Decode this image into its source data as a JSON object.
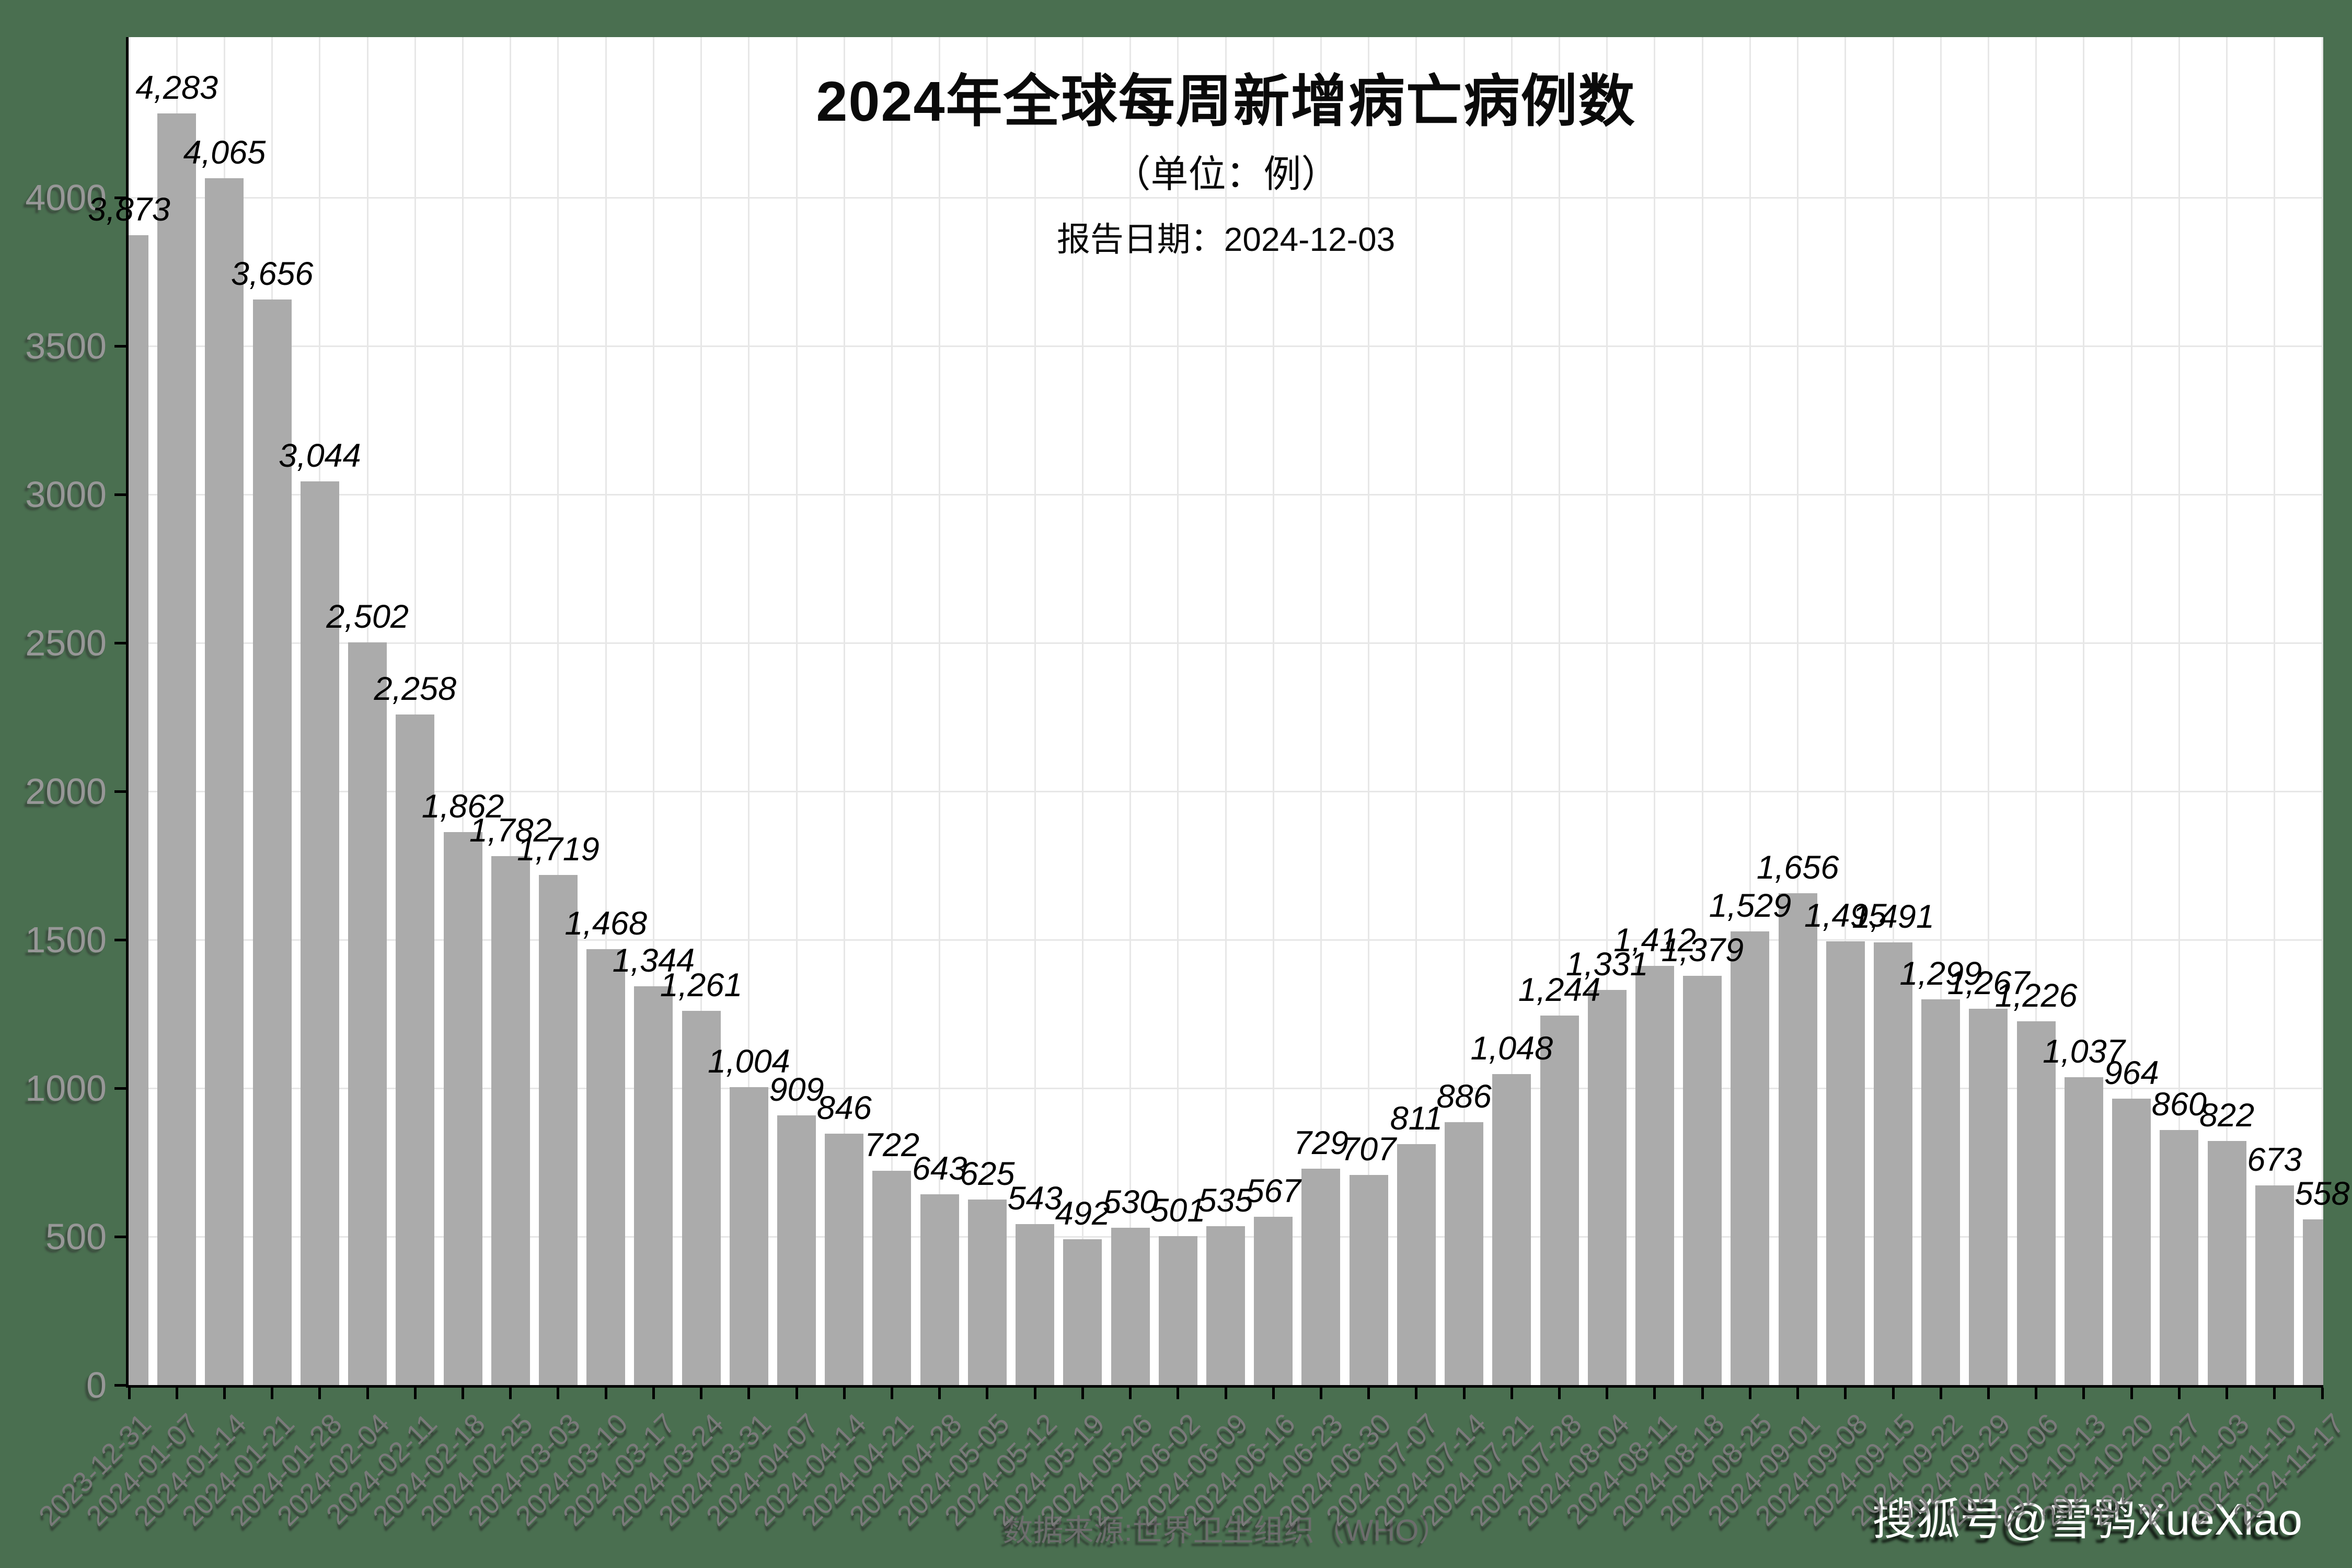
{
  "header": {
    "title": "2024年全球每周新增病亡病例数",
    "subtitle": "（单位：例）",
    "report_date_line": "报告日期：2024-12-03"
  },
  "footer": {
    "source": "数据来源:世界卫生组织（WHO）",
    "watermark": "搜狐号@雪鸮XueXiao"
  },
  "colors": {
    "page_background": "#4a6f50",
    "panel_background": "#ffffff",
    "bar_fill": "#ababab",
    "gridline": "#e7e7e7",
    "axis_line": "#000000",
    "y_tick_label": "#979797",
    "x_tick_label": "#7a7a7a",
    "value_label": "#000000",
    "footer_text": "#6d6d6d",
    "watermark_text": "#ffffff"
  },
  "chart_data": {
    "type": "bar",
    "title": "2024年全球每周新增病亡病例数",
    "subtitle": "（单位：例）",
    "annotation": "报告日期：2024-12-03",
    "xlabel": "",
    "ylabel": "",
    "ylim": [
      0,
      4540
    ],
    "grid": true,
    "legend": "none",
    "y_ticks": [
      0,
      500,
      1000,
      1500,
      2000,
      2500,
      3000,
      3500,
      4000
    ],
    "y_tick_labels": [
      "0",
      "500",
      "1000",
      "1500",
      "2000",
      "2500",
      "3000",
      "3500",
      "4000"
    ],
    "categories": [
      "2023-12-31",
      "2024-01-07",
      "2024-01-14",
      "2024-01-21",
      "2024-01-28",
      "2024-02-04",
      "2024-02-11",
      "2024-02-18",
      "2024-02-25",
      "2024-03-03",
      "2024-03-10",
      "2024-03-17",
      "2024-03-24",
      "2024-03-31",
      "2024-04-07",
      "2024-04-14",
      "2024-04-21",
      "2024-04-28",
      "2024-05-05",
      "2024-05-12",
      "2024-05-19",
      "2024-05-26",
      "2024-06-02",
      "2024-06-09",
      "2024-06-16",
      "2024-06-23",
      "2024-06-30",
      "2024-07-07",
      "2024-07-14",
      "2024-07-21",
      "2024-07-28",
      "2024-08-04",
      "2024-08-11",
      "2024-08-18",
      "2024-08-25",
      "2024-09-01",
      "2024-09-08",
      "2024-09-15",
      "2024-09-22",
      "2024-09-29",
      "2024-10-06",
      "2024-10-13",
      "2024-10-20",
      "2024-10-27",
      "2024-11-03",
      "2024-11-10",
      "2024-11-17"
    ],
    "values": [
      3873,
      4283,
      4065,
      3656,
      3044,
      2502,
      2258,
      1862,
      1782,
      1719,
      1468,
      1344,
      1261,
      1004,
      909,
      846,
      722,
      643,
      625,
      543,
      492,
      530,
      501,
      535,
      567,
      729,
      707,
      811,
      886,
      1048,
      1244,
      1331,
      1412,
      1379,
      1529,
      1656,
      1495,
      1491,
      1299,
      1267,
      1226,
      1037,
      964,
      860,
      822,
      673,
      558
    ],
    "value_labels": [
      "3,873",
      "4,283",
      "4,065",
      "3,656",
      "3,044",
      "2,502",
      "2,258",
      "1,862",
      "1,782",
      "1,719",
      "1,468",
      "1,344",
      "1,261",
      "1,004",
      "909",
      "846",
      "722",
      "643",
      "625",
      "543",
      "492",
      "530",
      "501",
      "535",
      "567",
      "729",
      "707",
      "811",
      "886",
      "1,048",
      "1,244",
      "1,331",
      "1,412",
      "1,379",
      "1,529",
      "1,656",
      "1,495",
      "1,491",
      "1,299",
      "1,267",
      "1,226",
      "1,037",
      "964",
      "860",
      "822",
      "673",
      "558"
    ]
  }
}
